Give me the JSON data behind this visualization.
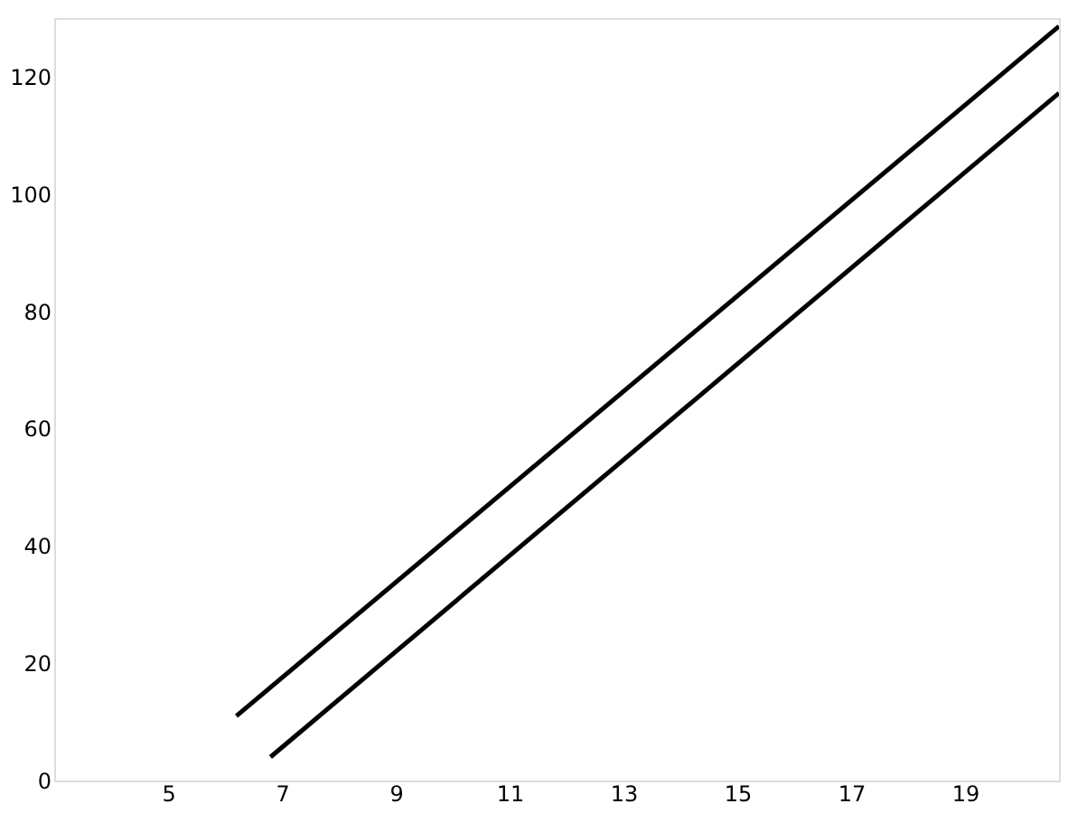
{
  "chart_data": {
    "type": "line",
    "series": [
      {
        "color": "#000000",
        "x": [
          6.2,
          20.65
        ],
        "values": [
          11,
          128.6
        ]
      },
      {
        "color": "#000000",
        "x": [
          6.8,
          20.65
        ],
        "values": [
          4,
          117.2
        ]
      }
    ],
    "xlim": [
      3,
      20.65
    ],
    "xticks": [
      5,
      7,
      9,
      11,
      13,
      15,
      17,
      19
    ],
    "ylim": [
      0,
      130
    ],
    "yticks": [
      0,
      20,
      40,
      60,
      80,
      100,
      120
    ],
    "grid": false,
    "marker": "none",
    "line_style": "solid"
  }
}
